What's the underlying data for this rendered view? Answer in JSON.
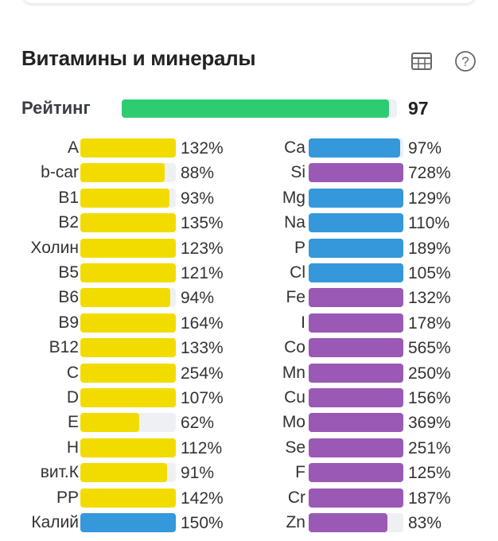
{
  "title": "Витамины и минералы",
  "icons": {
    "table": "table-icon",
    "help": "help-circle-icon"
  },
  "rating": {
    "label": "Рейтинг",
    "value": "97",
    "percent": 97
  },
  "colors": {
    "vitamin": "#f2dc00",
    "macro": "#3498db",
    "micro": "#9b59b6",
    "rating": "#2ecc71",
    "track": "#eef0f3"
  },
  "left": [
    {
      "label": "A",
      "value": "132%",
      "pct": 132,
      "type": "vitamin"
    },
    {
      "label": "b-car",
      "value": "88%",
      "pct": 88,
      "type": "vitamin"
    },
    {
      "label": "B1",
      "value": "93%",
      "pct": 93,
      "type": "vitamin"
    },
    {
      "label": "B2",
      "value": "135%",
      "pct": 135,
      "type": "vitamin"
    },
    {
      "label": "Холин",
      "value": "123%",
      "pct": 123,
      "type": "vitamin"
    },
    {
      "label": "B5",
      "value": "121%",
      "pct": 121,
      "type": "vitamin"
    },
    {
      "label": "B6",
      "value": "94%",
      "pct": 94,
      "type": "vitamin"
    },
    {
      "label": "B9",
      "value": "164%",
      "pct": 164,
      "type": "vitamin"
    },
    {
      "label": "B12",
      "value": "133%",
      "pct": 133,
      "type": "vitamin"
    },
    {
      "label": "C",
      "value": "254%",
      "pct": 254,
      "type": "vitamin"
    },
    {
      "label": "D",
      "value": "107%",
      "pct": 107,
      "type": "vitamin"
    },
    {
      "label": "E",
      "value": "62%",
      "pct": 62,
      "type": "vitamin"
    },
    {
      "label": "H",
      "value": "112%",
      "pct": 112,
      "type": "vitamin"
    },
    {
      "label": "вит.К",
      "value": "91%",
      "pct": 91,
      "type": "vitamin"
    },
    {
      "label": "PP",
      "value": "142%",
      "pct": 142,
      "type": "vitamin"
    },
    {
      "label": "Калий",
      "value": "150%",
      "pct": 150,
      "type": "macro"
    }
  ],
  "right": [
    {
      "label": "Ca",
      "value": "97%",
      "pct": 97,
      "type": "macro"
    },
    {
      "label": "Si",
      "value": "728%",
      "pct": 728,
      "type": "micro"
    },
    {
      "label": "Mg",
      "value": "129%",
      "pct": 129,
      "type": "macro"
    },
    {
      "label": "Na",
      "value": "110%",
      "pct": 110,
      "type": "macro"
    },
    {
      "label": "P",
      "value": "189%",
      "pct": 189,
      "type": "macro"
    },
    {
      "label": "Cl",
      "value": "105%",
      "pct": 105,
      "type": "macro"
    },
    {
      "label": "Fe",
      "value": "132%",
      "pct": 132,
      "type": "micro"
    },
    {
      "label": "I",
      "value": "178%",
      "pct": 178,
      "type": "micro"
    },
    {
      "label": "Co",
      "value": "565%",
      "pct": 565,
      "type": "micro"
    },
    {
      "label": "Mn",
      "value": "250%",
      "pct": 250,
      "type": "micro"
    },
    {
      "label": "Cu",
      "value": "156%",
      "pct": 156,
      "type": "micro"
    },
    {
      "label": "Mo",
      "value": "369%",
      "pct": 369,
      "type": "micro"
    },
    {
      "label": "Se",
      "value": "251%",
      "pct": 251,
      "type": "micro"
    },
    {
      "label": "F",
      "value": "125%",
      "pct": 125,
      "type": "micro"
    },
    {
      "label": "Cr",
      "value": "187%",
      "pct": 187,
      "type": "micro"
    },
    {
      "label": "Zn",
      "value": "83%",
      "pct": 83,
      "type": "micro"
    }
  ]
}
